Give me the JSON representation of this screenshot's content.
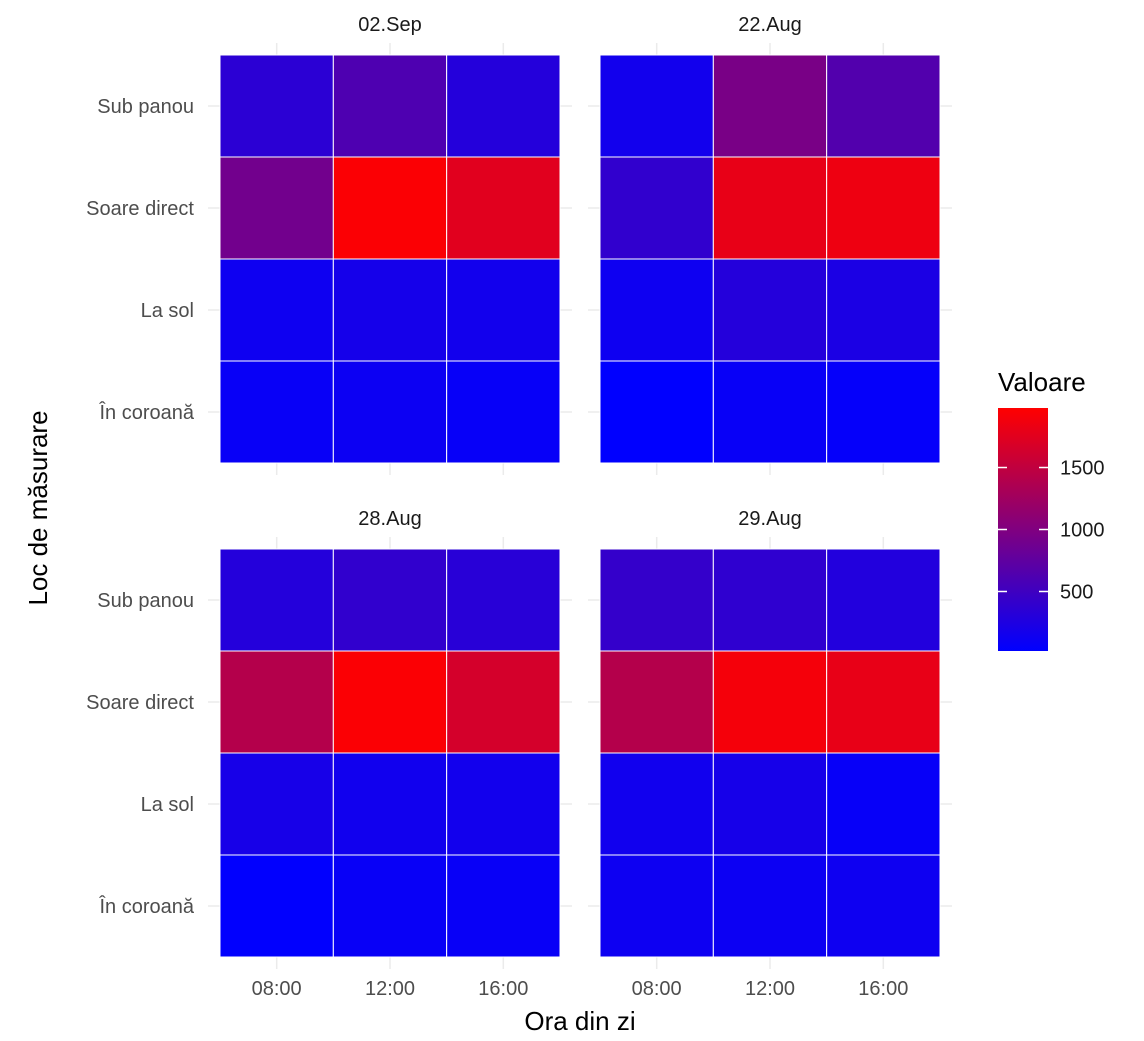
{
  "chart_data": {
    "type": "heatmap",
    "xlabel": "Ora din zi",
    "ylabel": "Loc de măsurare",
    "x_categories": [
      "08:00",
      "12:00",
      "16:00"
    ],
    "y_categories": [
      "Sub panou",
      "Soare direct",
      "La sol",
      "În coroană"
    ],
    "facets": [
      {
        "label": "02.Sep",
        "values": [
          [
            350,
            620,
            300
          ],
          [
            900,
            1950,
            1750
          ],
          [
            130,
            180,
            160
          ],
          [
            80,
            110,
            70
          ]
        ]
      },
      {
        "label": "22.Aug",
        "values": [
          [
            160,
            950,
            650
          ],
          [
            400,
            1800,
            1850
          ],
          [
            130,
            300,
            230
          ],
          [
            20,
            80,
            60
          ]
        ]
      },
      {
        "label": "28.Aug",
        "values": [
          [
            300,
            400,
            330
          ],
          [
            1400,
            1950,
            1650
          ],
          [
            200,
            150,
            160
          ],
          [
            30,
            80,
            80
          ]
        ]
      },
      {
        "label": "29.Aug",
        "values": [
          [
            420,
            380,
            280
          ],
          [
            1400,
            1900,
            1800
          ],
          [
            150,
            190,
            70
          ],
          [
            120,
            110,
            130
          ]
        ]
      }
    ],
    "legend": {
      "title": "Valoare",
      "min": 20,
      "max": 1980,
      "ticks": [
        500,
        1000,
        1500
      ],
      "low_color": "#0000ff",
      "high_color": "#ff0000",
      "placement": "right"
    },
    "grid": true
  }
}
